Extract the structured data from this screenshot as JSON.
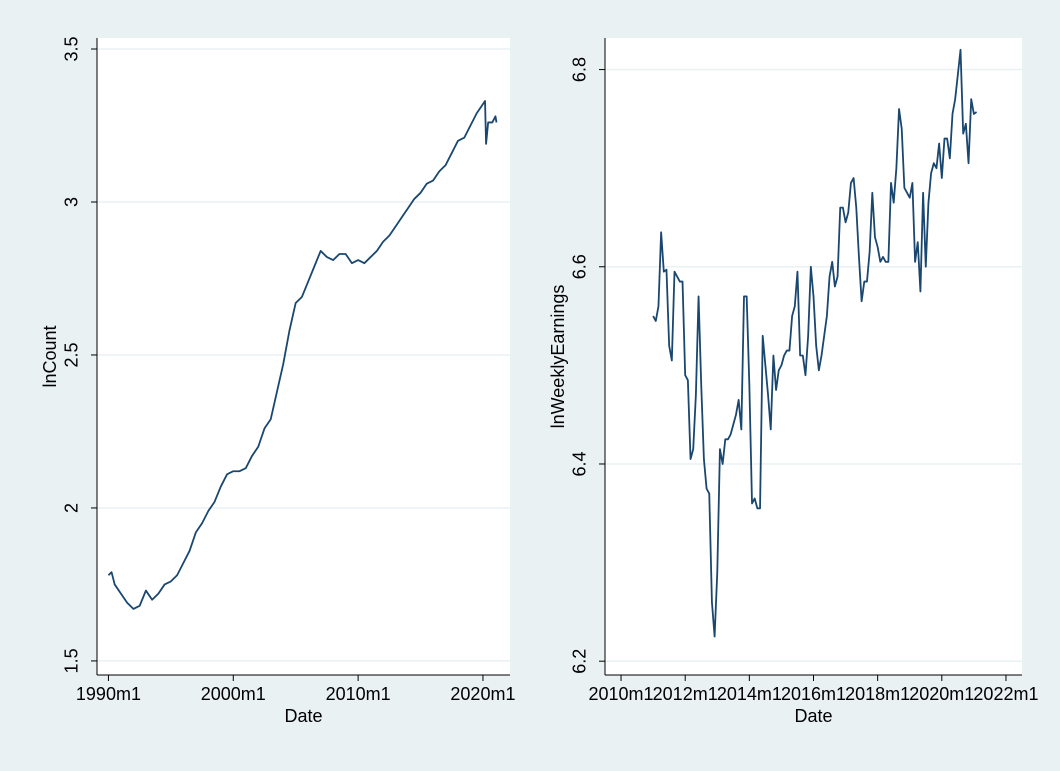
{
  "chart_data": [
    {
      "type": "line",
      "xlabel": "Date",
      "ylabel": "lnCount",
      "color": "#1a476f",
      "grid": true,
      "xlim": [
        "1989m2",
        "2022m3"
      ],
      "xticks": [
        "1990m1",
        "2000m1",
        "2010m1",
        "2020m1"
      ],
      "ylim": [
        1.454,
        3.536
      ],
      "yticks": [
        1.5,
        2,
        2.5,
        3,
        3.5
      ],
      "x": [
        "1990m1",
        "1990m4",
        "1990m7",
        "1991m1",
        "1991m7",
        "1992m1",
        "1992m7",
        "1993m1",
        "1993m7",
        "1994m1",
        "1994m7",
        "1995m1",
        "1995m7",
        "1996m1",
        "1996m7",
        "1997m1",
        "1997m7",
        "1998m1",
        "1998m7",
        "1999m1",
        "1999m7",
        "2000m1",
        "2000m7",
        "2001m1",
        "2001m7",
        "2002m1",
        "2002m7",
        "2003m1",
        "2003m7",
        "2004m1",
        "2004m7",
        "2005m1",
        "2005m7",
        "2006m1",
        "2006m7",
        "2007m1",
        "2007m7",
        "2008m1",
        "2008m7",
        "2009m1",
        "2009m7",
        "2010m1",
        "2010m7",
        "2011m1",
        "2011m7",
        "2012m1",
        "2012m7",
        "2013m1",
        "2013m7",
        "2014m1",
        "2014m7",
        "2015m1",
        "2015m7",
        "2016m1",
        "2016m7",
        "2017m1",
        "2017m7",
        "2018m1",
        "2018m7",
        "2019m1",
        "2019m7",
        "2020m1",
        "2020m3",
        "2020m4",
        "2020m6",
        "2020m10",
        "2021m1",
        "2021m2"
      ],
      "values": [
        1.78,
        1.79,
        1.75,
        1.72,
        1.69,
        1.67,
        1.68,
        1.73,
        1.7,
        1.72,
        1.75,
        1.76,
        1.78,
        1.82,
        1.86,
        1.92,
        1.95,
        1.99,
        2.02,
        2.07,
        2.11,
        2.12,
        2.12,
        2.13,
        2.17,
        2.2,
        2.26,
        2.29,
        2.38,
        2.47,
        2.58,
        2.67,
        2.69,
        2.74,
        2.79,
        2.84,
        2.82,
        2.81,
        2.83,
        2.83,
        2.8,
        2.81,
        2.8,
        2.82,
        2.84,
        2.87,
        2.89,
        2.92,
        2.95,
        2.98,
        3.01,
        3.03,
        3.06,
        3.07,
        3.1,
        3.12,
        3.16,
        3.2,
        3.21,
        3.25,
        3.29,
        3.32,
        3.33,
        3.19,
        3.26,
        3.26,
        3.28,
        3.26
      ]
    },
    {
      "type": "line",
      "xlabel": "Date",
      "ylabel": "lnWeeklyEarnings",
      "color": "#1a476f",
      "grid": true,
      "xlim": [
        "2009m7",
        "2022m7"
      ],
      "xticks": [
        "2010m1",
        "2012m1",
        "2014m1",
        "2016m1",
        "2018m1",
        "2020m1",
        "2022m1"
      ],
      "ylim": [
        6.186,
        6.832
      ],
      "yticks": [
        6.2,
        6.4,
        6.6,
        6.8
      ],
      "x": [
        "2011m1",
        "2011m2",
        "2011m3",
        "2011m4",
        "2011m5",
        "2011m6",
        "2011m7",
        "2011m8",
        "2011m9",
        "2011m10",
        "2011m11",
        "2011m12",
        "2012m1",
        "2012m2",
        "2012m3",
        "2012m4",
        "2012m5",
        "2012m6",
        "2012m7",
        "2012m8",
        "2012m9",
        "2012m10",
        "2012m11",
        "2012m12",
        "2013m1",
        "2013m2",
        "2013m3",
        "2013m4",
        "2013m5",
        "2013m6",
        "2013m7",
        "2013m8",
        "2013m9",
        "2013m10",
        "2013m11",
        "2013m12",
        "2014m1",
        "2014m2",
        "2014m3",
        "2014m4",
        "2014m5",
        "2014m6",
        "2014m7",
        "2014m8",
        "2014m9",
        "2014m10",
        "2014m11",
        "2014m12",
        "2015m1",
        "2015m2",
        "2015m3",
        "2015m4",
        "2015m5",
        "2015m6",
        "2015m7",
        "2015m8",
        "2015m9",
        "2015m10",
        "2015m11",
        "2015m12",
        "2016m1",
        "2016m2",
        "2016m3",
        "2016m4",
        "2016m5",
        "2016m6",
        "2016m7",
        "2016m8",
        "2016m9",
        "2016m10",
        "2016m11",
        "2016m12",
        "2017m1",
        "2017m2",
        "2017m3",
        "2017m4",
        "2017m5",
        "2017m6",
        "2017m7",
        "2017m8",
        "2017m9",
        "2017m10",
        "2017m11",
        "2017m12",
        "2018m1",
        "2018m2",
        "2018m3",
        "2018m4",
        "2018m5",
        "2018m6",
        "2018m7",
        "2018m8",
        "2018m9",
        "2018m10",
        "2018m11",
        "2018m12",
        "2019m1",
        "2019m2",
        "2019m3",
        "2019m4",
        "2019m5",
        "2019m6",
        "2019m7",
        "2019m8",
        "2019m9",
        "2019m10",
        "2019m11",
        "2019m12",
        "2020m1",
        "2020m2",
        "2020m3",
        "2020m4",
        "2020m5",
        "2020m6",
        "2020m7",
        "2020m8",
        "2020m9",
        "2020m10",
        "2020m11",
        "2020m12",
        "2021m1",
        "2021m2"
      ],
      "values": [
        6.55,
        6.545,
        6.56,
        6.635,
        6.595,
        6.597,
        6.52,
        6.505,
        6.595,
        6.59,
        6.585,
        6.585,
        6.49,
        6.485,
        6.405,
        6.415,
        6.47,
        6.57,
        6.48,
        6.405,
        6.375,
        6.37,
        6.26,
        6.225,
        6.29,
        6.415,
        6.4,
        6.425,
        6.425,
        6.43,
        6.44,
        6.45,
        6.465,
        6.435,
        6.57,
        6.57,
        6.48,
        6.36,
        6.365,
        6.355,
        6.355,
        6.53,
        6.5,
        6.47,
        6.435,
        6.51,
        6.475,
        6.495,
        6.5,
        6.51,
        6.515,
        6.515,
        6.55,
        6.56,
        6.595,
        6.51,
        6.51,
        6.49,
        6.53,
        6.6,
        6.57,
        6.52,
        6.495,
        6.51,
        6.53,
        6.55,
        6.59,
        6.605,
        6.58,
        6.59,
        6.66,
        6.66,
        6.645,
        6.655,
        6.685,
        6.69,
        6.66,
        6.61,
        6.565,
        6.585,
        6.585,
        6.615,
        6.675,
        6.63,
        6.62,
        6.605,
        6.61,
        6.605,
        6.605,
        6.685,
        6.665,
        6.7,
        6.76,
        6.74,
        6.68,
        6.675,
        6.67,
        6.685,
        6.605,
        6.625,
        6.575,
        6.675,
        6.6,
        6.665,
        6.695,
        6.705,
        6.7,
        6.725,
        6.69,
        6.73,
        6.73,
        6.71,
        6.755,
        6.77,
        6.795,
        6.82,
        6.735,
        6.745,
        6.705,
        6.77,
        6.755,
        6.757
      ]
    }
  ]
}
